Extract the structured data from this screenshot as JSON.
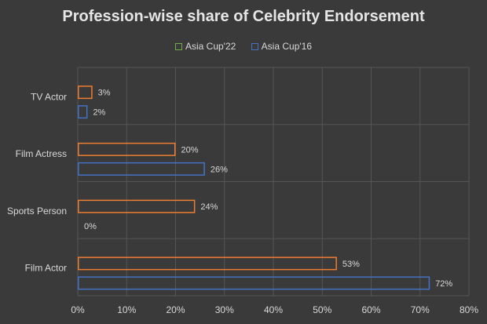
{
  "chart_data": {
    "type": "bar",
    "orientation": "horizontal",
    "title": "Profession-wise share of Celebrity Endorsement",
    "categories": [
      "TV Actor",
      "Film Actress",
      "Sports Person",
      "Film Actor"
    ],
    "series": [
      {
        "name": "Asia Cup'22",
        "values": [
          3,
          20,
          24,
          53
        ],
        "labels": [
          "3%",
          "20%",
          "24%",
          "53%"
        ],
        "color": "#ed7d31",
        "legend_color": "#70ad47"
      },
      {
        "name": "Asia Cup'16",
        "values": [
          2,
          26,
          0,
          72
        ],
        "labels": [
          "2%",
          "26%",
          "0%",
          "72%"
        ],
        "color": "#4472c4",
        "legend_color": "#4472c4"
      }
    ],
    "xlim": [
      0,
      80
    ],
    "xticks": [
      "0%",
      "10%",
      "20%",
      "30%",
      "40%",
      "50%",
      "60%",
      "70%",
      "80%"
    ],
    "grid": true,
    "legend_position": "top"
  }
}
